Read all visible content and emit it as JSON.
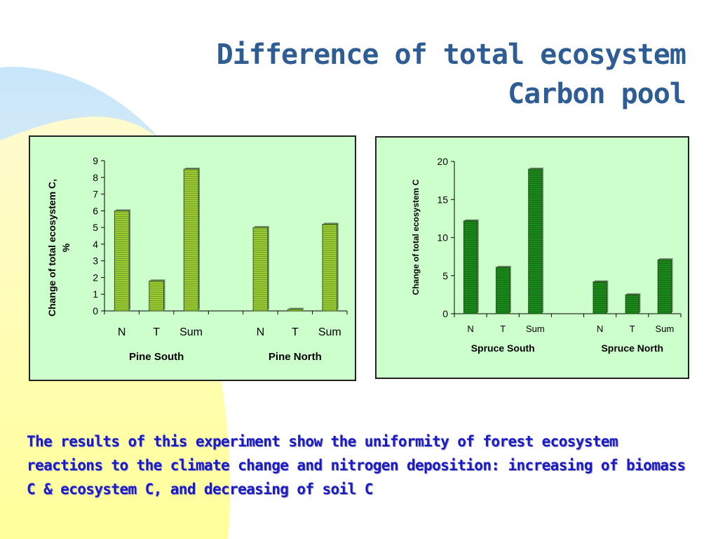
{
  "slide": {
    "title_line1": "Difference of total ecosystem",
    "title_line2": "Carbon pool",
    "summary": "The results of this experiment show the uniformity of forest ecosystem reactions to the climate change and nitrogen deposition: increasing of biomass C & ecosystem C, and decreasing of soil C"
  },
  "colors": {
    "title": "#2e5c95",
    "summary": "#1a1ac8",
    "panel_bg": "#ccffcc",
    "pine_bar": "#99cc33",
    "spruce_bar": "#1a8a1a"
  },
  "chart_data": [
    {
      "type": "bar",
      "ylabel": "Change of total ecosystem C, %",
      "ylim": [
        0,
        9
      ],
      "yticks": [
        "0",
        "1",
        "2",
        "3",
        "4",
        "5",
        "6",
        "7",
        "8",
        "9"
      ],
      "groups": [
        {
          "name": "Pine South",
          "categories": [
            "N",
            "T",
            "Sum"
          ],
          "values": [
            6.0,
            1.8,
            8.5
          ]
        },
        {
          "name": "Pine North",
          "categories": [
            "N",
            "T",
            "Sum"
          ],
          "values": [
            5.0,
            0.1,
            5.2
          ]
        }
      ],
      "grid": false
    },
    {
      "type": "bar",
      "ylabel": "Change of total ecosystem C",
      "ylim": [
        0,
        20
      ],
      "yticks": [
        "0",
        "5",
        "10",
        "15",
        "20"
      ],
      "groups": [
        {
          "name": "Spruce South",
          "categories": [
            "N",
            "T",
            "Sum"
          ],
          "values": [
            12.2,
            6.1,
            19.0
          ]
        },
        {
          "name": "Spruce North",
          "categories": [
            "N",
            "T",
            "Sum"
          ],
          "values": [
            4.2,
            2.5,
            7.1
          ]
        }
      ],
      "grid": false
    }
  ]
}
